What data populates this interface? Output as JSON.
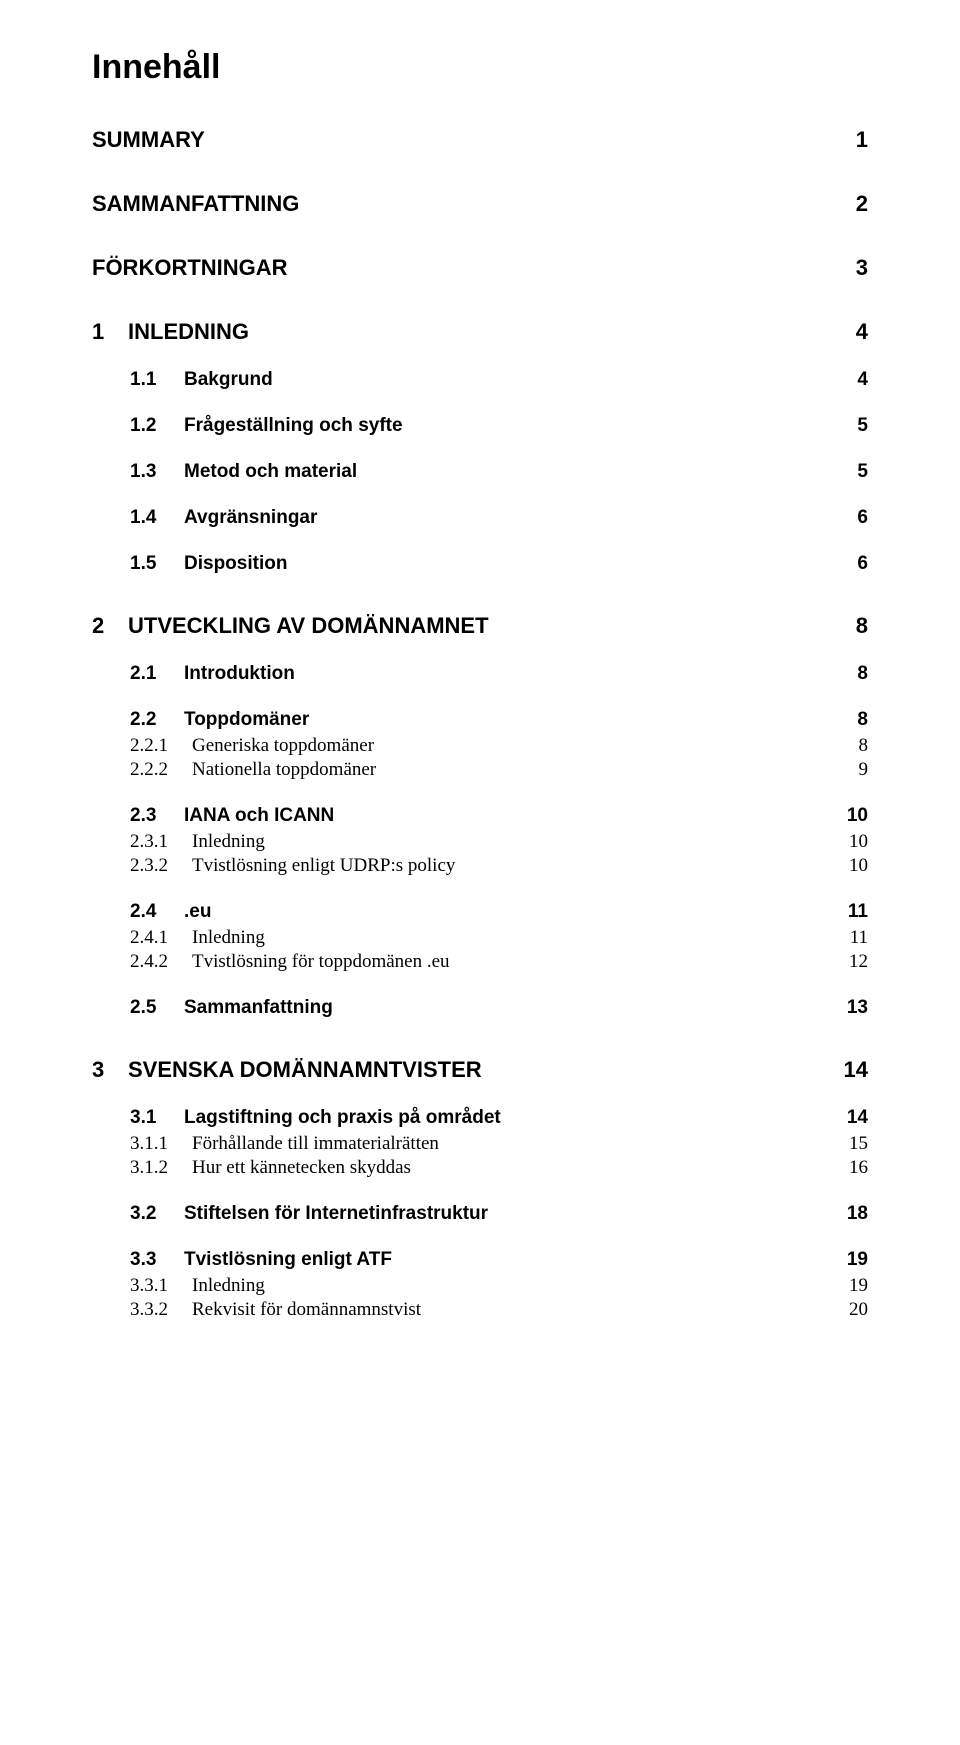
{
  "title": "Innehåll",
  "entries": [
    {
      "level": "top",
      "num": "",
      "label": "SUMMARY",
      "page": "1"
    },
    {
      "level": "top",
      "num": "",
      "label": "SAMMANFATTNING",
      "page": "2"
    },
    {
      "level": "top",
      "num": "",
      "label": "FÖRKORTNINGAR",
      "page": "3"
    },
    {
      "level": "chapter",
      "num": "1",
      "label": "INLEDNING",
      "page": "4"
    },
    {
      "level": "section",
      "num": "1.1",
      "label": "Bakgrund",
      "page": "4"
    },
    {
      "level": "section",
      "num": "1.2",
      "label": "Frågeställning och syfte",
      "page": "5"
    },
    {
      "level": "section",
      "num": "1.3",
      "label": "Metod och material",
      "page": "5"
    },
    {
      "level": "section",
      "num": "1.4",
      "label": "Avgränsningar",
      "page": "6"
    },
    {
      "level": "section",
      "num": "1.5",
      "label": "Disposition",
      "page": "6"
    },
    {
      "level": "chapter",
      "num": "2",
      "label": "UTVECKLING AV DOMÄNNAMNET",
      "page": "8"
    },
    {
      "level": "section",
      "num": "2.1",
      "label": "Introduktion",
      "page": "8"
    },
    {
      "level": "section",
      "num": "2.2",
      "label": "Toppdomäner",
      "page": "8"
    },
    {
      "level": "sub",
      "num": "2.2.1",
      "label": "Generiska toppdomäner",
      "page": "8"
    },
    {
      "level": "sub",
      "num": "2.2.2",
      "label": "Nationella toppdomäner",
      "page": "9"
    },
    {
      "level": "section",
      "num": "2.3",
      "label": "IANA och ICANN",
      "page": "10"
    },
    {
      "level": "sub",
      "num": "2.3.1",
      "label": "Inledning",
      "page": "10"
    },
    {
      "level": "sub",
      "num": "2.3.2",
      "label": "Tvistlösning enligt UDRP:s policy",
      "page": "10"
    },
    {
      "level": "section",
      "num": "2.4",
      "label": ".eu",
      "page": "11"
    },
    {
      "level": "sub",
      "num": "2.4.1",
      "label": "Inledning",
      "page": "11"
    },
    {
      "level": "sub",
      "num": "2.4.2",
      "label": "Tvistlösning för toppdomänen .eu",
      "page": "12"
    },
    {
      "level": "section",
      "num": "2.5",
      "label": "Sammanfattning",
      "page": "13"
    },
    {
      "level": "chapter",
      "num": "3",
      "label": "SVENSKA DOMÄNNAMNTVISTER",
      "page": "14"
    },
    {
      "level": "section",
      "num": "3.1",
      "label": "Lagstiftning och praxis på området",
      "page": "14"
    },
    {
      "level": "sub",
      "num": "3.1.1",
      "label": "Förhållande till immaterialrätten",
      "page": "15"
    },
    {
      "level": "sub",
      "num": "3.1.2",
      "label": "Hur ett kännetecken skyddas",
      "page": "16"
    },
    {
      "level": "section",
      "num": "3.2",
      "label": "Stiftelsen för Internetinfrastruktur",
      "page": "18"
    },
    {
      "level": "section",
      "num": "3.3",
      "label": "Tvistlösning enligt ATF",
      "page": "19"
    },
    {
      "level": "sub",
      "num": "3.3.1",
      "label": "Inledning",
      "page": "19"
    },
    {
      "level": "sub",
      "num": "3.3.2",
      "label": "Rekvisit för domännamnstvist",
      "page": "20"
    }
  ]
}
